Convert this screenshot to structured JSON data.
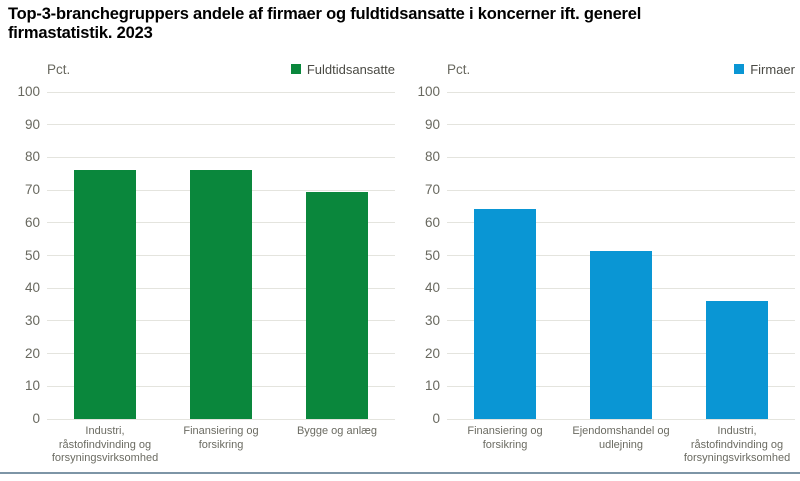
{
  "page": {
    "title": "Top-3-branchegruppers andele af firmaer og fuldtidsansatte i koncerner ift. generel\nfirmastatistik. 2023",
    "bottom_rule_color": "#7d95a6"
  },
  "chart_data": [
    {
      "type": "bar",
      "panel": "left",
      "ylabel": "Pct.",
      "legend": "Fuldtidsansatte",
      "legend_position": "top-right",
      "bar_color": "#0a873c",
      "gridline_color": "#e4e4de",
      "grid": true,
      "categories": [
        "Industri,\nråstofindvinding og\nforsyningsvirksomhed",
        "Finansiering og\nforsikring",
        "Bygge og anlæg"
      ],
      "values": [
        76.3,
        76.1,
        69.5
      ],
      "ylim": [
        0,
        100
      ],
      "ytick_step": 10
    },
    {
      "type": "bar",
      "panel": "right",
      "ylabel": "Pct.",
      "legend": "Firmaer",
      "legend_position": "top-right",
      "bar_color": "#0a96d4",
      "gridline_color": "#e4e4de",
      "grid": true,
      "categories": [
        "Finansiering og\nforsikring",
        "Ejendomshandel og\nudlejning",
        "Industri,\nråstofindvinding og\nforsyningsvirksomhed"
      ],
      "values": [
        64.3,
        51.4,
        36.2
      ],
      "ylim": [
        0,
        100
      ],
      "ytick_step": 10
    }
  ]
}
